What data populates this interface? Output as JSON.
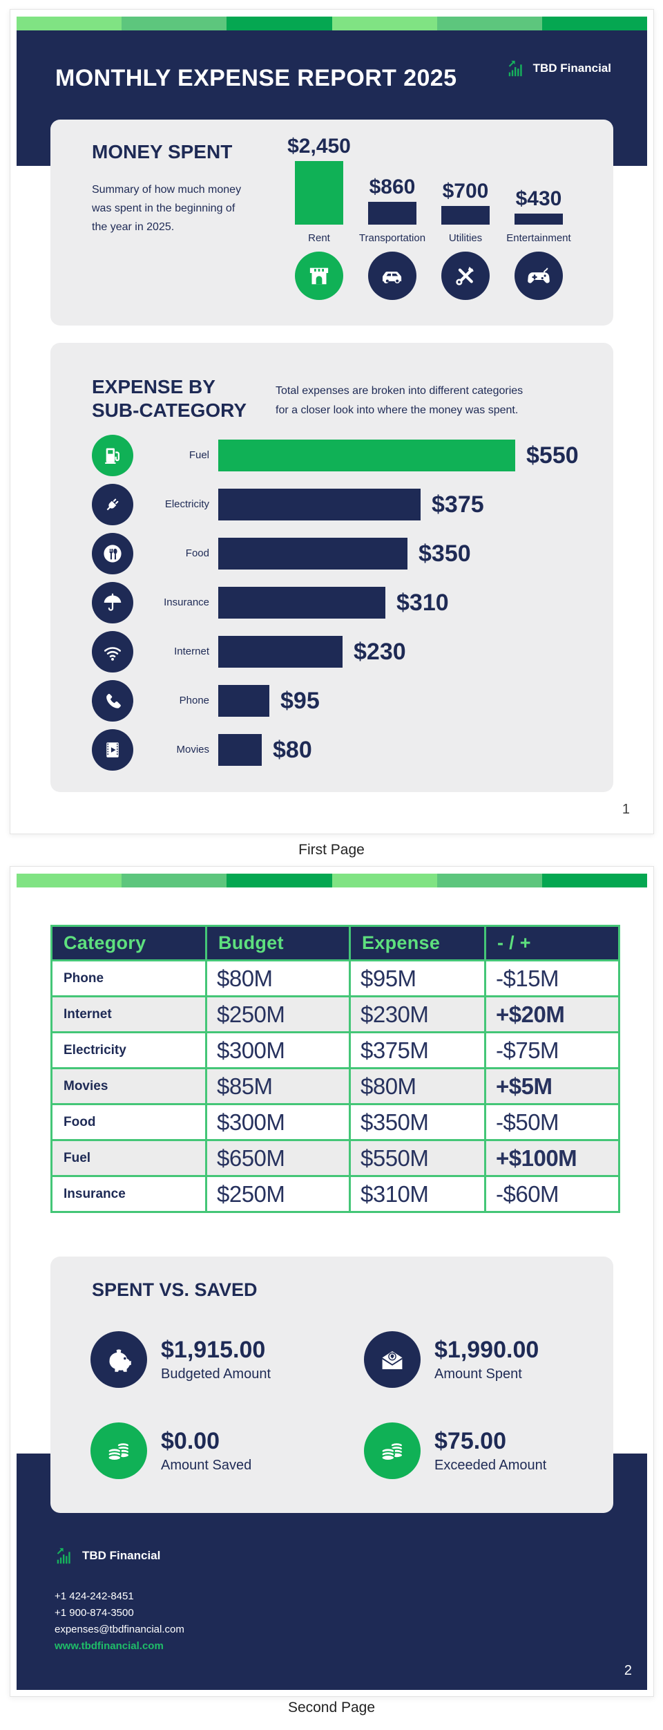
{
  "page1": {
    "header": {
      "title": "MONTHLY EXPENSE REPORT 2025",
      "brand": "TBD Financial",
      "brand_icon": "growth-chart-icon"
    },
    "money_spent": {
      "title": "MONEY SPENT",
      "description_lines": [
        "Summary of how much money",
        "was spent in the beginning of",
        "the year in 2025."
      ],
      "items": [
        {
          "label": "Rent",
          "value": 2450,
          "value_label": "$2,450",
          "icon": "storefront-icon",
          "accent": "green"
        },
        {
          "label": "Transportation",
          "value": 860,
          "value_label": "$860",
          "icon": "car-icon",
          "accent": "navy"
        },
        {
          "label": "Utilities",
          "value": 700,
          "value_label": "$700",
          "icon": "tools-icon",
          "accent": "navy"
        },
        {
          "label": "Entertainment",
          "value": 430,
          "value_label": "$430",
          "icon": "gamepad-icon",
          "accent": "navy"
        }
      ]
    },
    "subcategory": {
      "title_line1": "EXPENSE BY",
      "title_line2": "SUB-CATEGORY",
      "description_line1": "Total expenses are broken into different categories",
      "description_line2": "for a closer look into where the money was spent.",
      "items": [
        {
          "label": "Fuel",
          "value": 550,
          "value_label": "$550",
          "icon": "fuel-pump-icon",
          "accent": "green"
        },
        {
          "label": "Electricity",
          "value": 375,
          "value_label": "$375",
          "icon": "plug-icon",
          "accent": "navy"
        },
        {
          "label": "Food",
          "value": 350,
          "value_label": "$350",
          "icon": "cutlery-icon",
          "accent": "navy"
        },
        {
          "label": "Insurance",
          "value": 310,
          "value_label": "$310",
          "icon": "umbrella-icon",
          "accent": "navy"
        },
        {
          "label": "Internet",
          "value": 230,
          "value_label": "$230",
          "icon": "wifi-icon",
          "accent": "navy"
        },
        {
          "label": "Phone",
          "value": 95,
          "value_label": "$95",
          "icon": "phone-icon",
          "accent": "navy"
        },
        {
          "label": "Movies",
          "value": 80,
          "value_label": "$80",
          "icon": "film-icon",
          "accent": "navy"
        }
      ]
    },
    "page_number": "1",
    "caption": "First Page"
  },
  "page2": {
    "table": {
      "headers": [
        "Category",
        "Budget",
        "Expense",
        "- / +"
      ],
      "rows": [
        [
          "Phone",
          "$80M",
          "$95M",
          "-$15M"
        ],
        [
          "Internet",
          "$250M",
          "$230M",
          "+$20M"
        ],
        [
          "Electricity",
          "$300M",
          "$375M",
          "-$75M"
        ],
        [
          "Movies",
          "$85M",
          "$80M",
          "+$5M"
        ],
        [
          "Food",
          "$300M",
          "$350M",
          "-$50M"
        ],
        [
          "Fuel",
          "$650M",
          "$550M",
          "+$100M"
        ],
        [
          "Insurance",
          "$250M",
          "$310M",
          "-$60M"
        ]
      ]
    },
    "spent_vs_saved": {
      "title": "SPENT VS. SAVED",
      "stats": [
        {
          "value": "$1,915.00",
          "label": "Budgeted Amount",
          "icon": "piggy-bank-icon",
          "accent": "navy"
        },
        {
          "value": "$1,990.00",
          "label": "Amount Spent",
          "icon": "envelope-money-icon",
          "accent": "navy"
        },
        {
          "value": "$0.00",
          "label": "Amount Saved",
          "icon": "coins-icon",
          "accent": "green"
        },
        {
          "value": "$75.00",
          "label": "Exceeded Amount",
          "icon": "coins-icon",
          "accent": "green"
        }
      ]
    },
    "footer": {
      "brand": "TBD Financial",
      "brand_icon": "growth-chart-icon",
      "phone1": "+1 424-242-8451",
      "phone2": "+1 900-874-3500",
      "email": "expenses@tbdfinancial.com",
      "website": "www.tbdfinancial.com"
    },
    "page_number": "2",
    "caption": "Second Page"
  },
  "colors": {
    "navy": "#1e2a55",
    "green": "#10b156",
    "strip_light": "#80e383",
    "strip_medium": "#5dc67d",
    "strip_dark": "#05a751",
    "card_grey": "#ededee",
    "table_border_green": "#44c677",
    "table_header_text": "#5ee07e",
    "website_green": "#1fbd68"
  },
  "chart_data": [
    {
      "type": "bar",
      "orientation": "vertical",
      "title": "MONEY SPENT",
      "categories": [
        "Rent",
        "Transportation",
        "Utilities",
        "Entertainment"
      ],
      "values": [
        2450,
        860,
        700,
        430
      ],
      "value_labels": [
        "$2,450",
        "$860",
        "$700",
        "$430"
      ],
      "xlabel": "",
      "ylabel": "",
      "grid": false,
      "legend": false
    },
    {
      "type": "bar",
      "orientation": "horizontal",
      "title": "EXPENSE BY SUB-CATEGORY",
      "categories": [
        "Fuel",
        "Electricity",
        "Food",
        "Insurance",
        "Internet",
        "Phone",
        "Movies"
      ],
      "values": [
        550,
        375,
        350,
        310,
        230,
        95,
        80
      ],
      "value_labels": [
        "$550",
        "$375",
        "$350",
        "$310",
        "$230",
        "$95",
        "$80"
      ],
      "xlabel": "",
      "ylabel": "",
      "grid": false,
      "legend": false
    }
  ]
}
